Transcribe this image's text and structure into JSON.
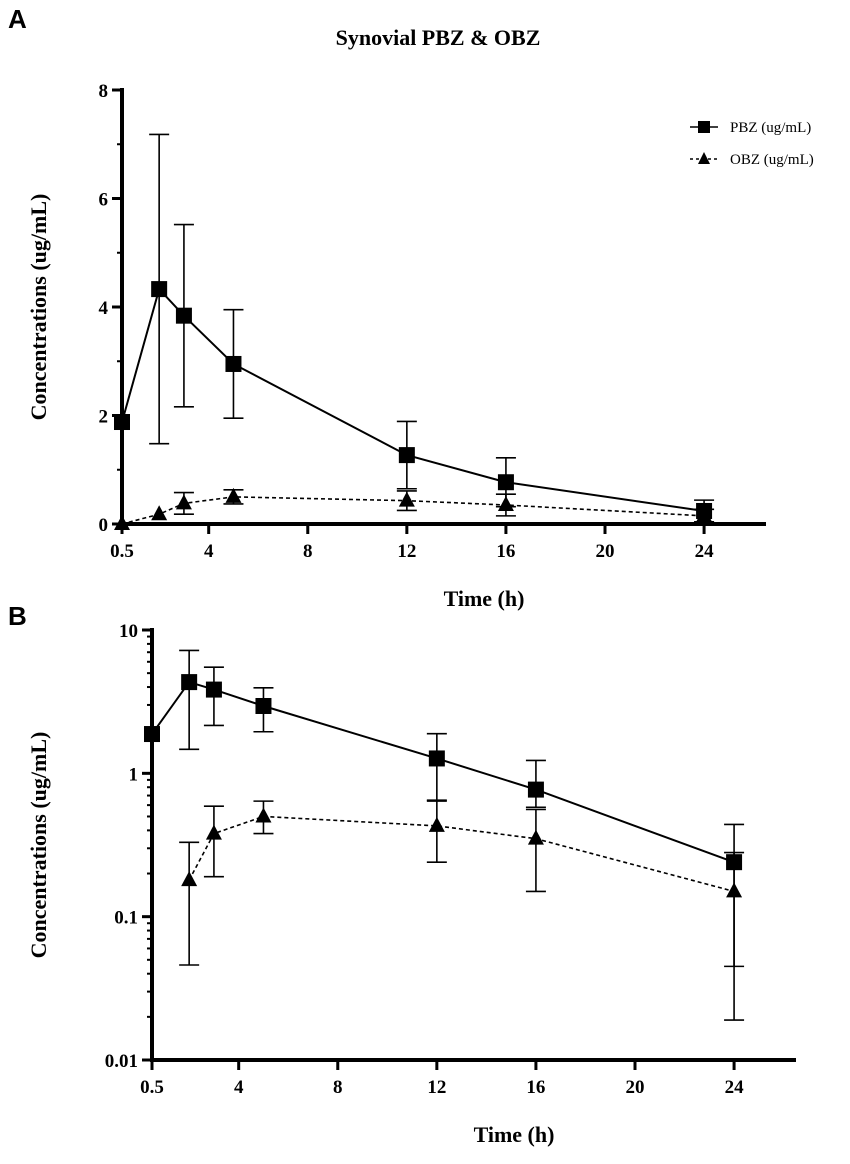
{
  "colors": {
    "ink": "#000000",
    "background": "#ffffff"
  },
  "figure": {
    "panel_a_letter": "A",
    "panel_b_letter": "B",
    "title": "Synovial PBZ & OBZ"
  },
  "chart_data": [
    {
      "panel": "A",
      "type": "line",
      "title": "Synovial PBZ & OBZ",
      "xlabel": "Time (h)",
      "ylabel": "Concentrations (ug/mL)",
      "xscale": "linear",
      "yscale": "linear",
      "xlim": [
        0.5,
        26.5
      ],
      "ylim": [
        0,
        8
      ],
      "xticks": [
        0.5,
        4,
        8,
        12,
        16,
        20,
        24
      ],
      "xtick_labels": [
        "0.5",
        "4",
        "8",
        "12",
        "16",
        "20",
        "24"
      ],
      "yticks": [
        0,
        2,
        4,
        6,
        8
      ],
      "ytick_labels": [
        "0",
        "2",
        "4",
        "6",
        "8"
      ],
      "legend": {
        "position": "top-right",
        "entries": [
          "PBZ (ug/mL)",
          "OBZ (ug/mL)"
        ]
      },
      "series": [
        {
          "name": "PBZ (ug/mL)",
          "marker": "square",
          "line": "solid",
          "x": [
            0.5,
            2,
            3,
            5,
            12,
            16,
            24
          ],
          "y": [
            1.88,
            4.33,
            3.84,
            2.95,
            1.27,
            0.77,
            0.24
          ],
          "err": [
            0,
            2.85,
            1.68,
            1.0,
            0.62,
            0.45,
            0.2
          ]
        },
        {
          "name": "OBZ (ug/mL)",
          "marker": "triangle",
          "line": "dashed",
          "x": [
            0.5,
            2,
            3,
            5,
            12,
            16,
            24
          ],
          "y": [
            0,
            0.18,
            0.38,
            0.5,
            0.43,
            0.35,
            0.15
          ],
          "err": [
            0,
            0,
            0.2,
            0.13,
            0.18,
            0.2,
            0.12
          ]
        }
      ]
    },
    {
      "panel": "B",
      "type": "line",
      "title": "",
      "xlabel": "Time (h)",
      "ylabel": "Concentrations (ug/mL)",
      "xscale": "linear",
      "yscale": "log",
      "xlim": [
        0.5,
        26.5
      ],
      "ylim": [
        0.01,
        10
      ],
      "xticks": [
        0.5,
        4,
        8,
        12,
        16,
        20,
        24
      ],
      "xtick_labels": [
        "0.5",
        "4",
        "8",
        "12",
        "16",
        "20",
        "24"
      ],
      "yticks": [
        0.01,
        0.1,
        1,
        10
      ],
      "ytick_labels": [
        "0.01",
        "0.1",
        "1",
        "10"
      ],
      "series": [
        {
          "name": "PBZ (ug/mL)",
          "marker": "square",
          "line": "solid",
          "x": [
            0.5,
            2,
            3,
            5,
            12,
            16,
            24
          ],
          "y": [
            1.88,
            4.33,
            3.84,
            2.95,
            1.27,
            0.77,
            0.24
          ],
          "err_low": [
            1.88,
            1.47,
            2.16,
            1.95,
            0.65,
            0.58,
            0.045
          ],
          "err_high": [
            1.88,
            7.2,
            5.5,
            3.95,
            1.89,
            1.23,
            0.44
          ]
        },
        {
          "name": "OBZ (ug/mL)",
          "marker": "triangle",
          "line": "dashed",
          "x": [
            2,
            3,
            5,
            12,
            16,
            24
          ],
          "y": [
            0.18,
            0.38,
            0.5,
            0.43,
            0.35,
            0.15
          ],
          "err_low": [
            0.046,
            0.19,
            0.38,
            0.24,
            0.15,
            0.019
          ],
          "err_high": [
            0.33,
            0.59,
            0.64,
            0.64,
            0.56,
            0.28
          ]
        }
      ]
    }
  ]
}
